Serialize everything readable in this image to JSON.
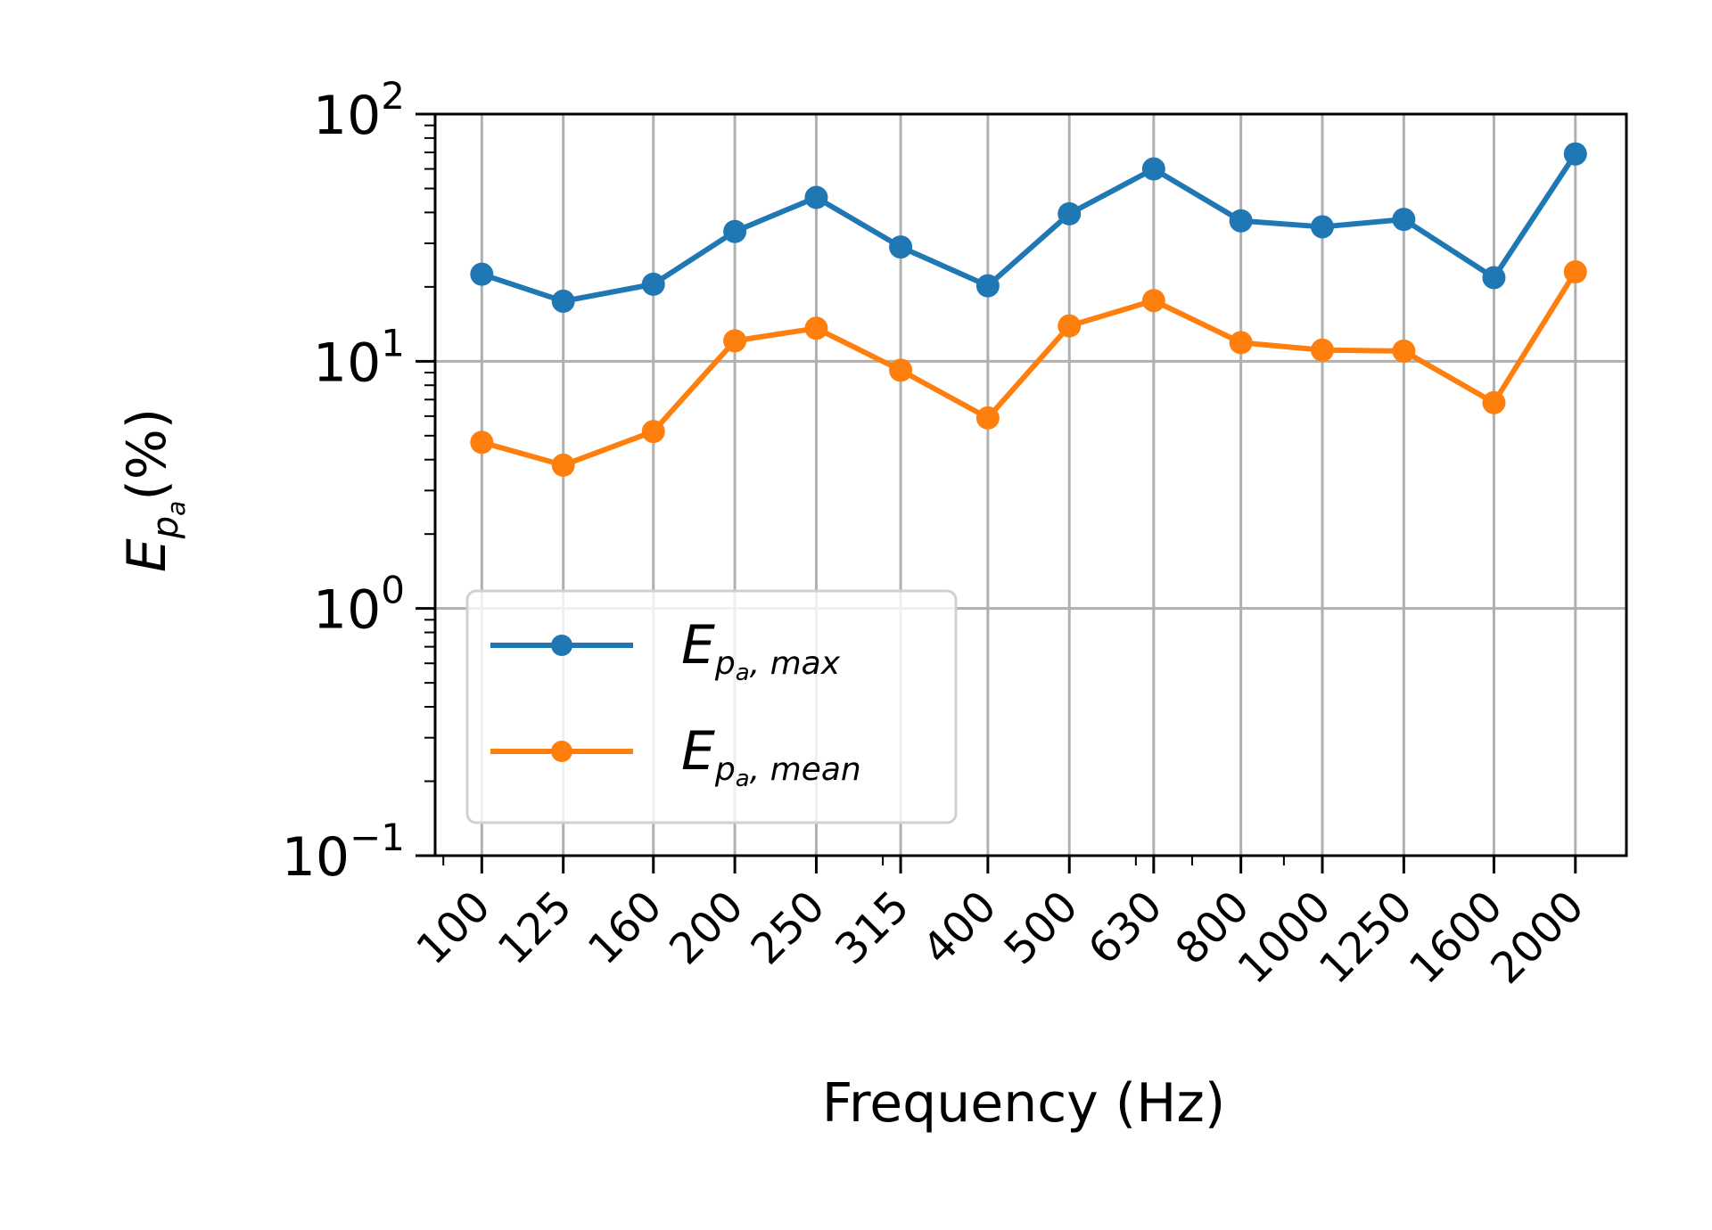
{
  "chart_data": {
    "type": "line",
    "title": "",
    "xlabel": "Frequency (Hz)",
    "ylabel": {
      "main": "E",
      "sub": "p",
      "subsub": "a",
      "unit": "(%)"
    },
    "yscale": "log",
    "ylim": [
      0.1,
      100
    ],
    "y_ticks": [
      {
        "base": "10",
        "exp": "−1"
      },
      {
        "base": "10",
        "exp": "0"
      },
      {
        "base": "10",
        "exp": "1"
      },
      {
        "base": "10",
        "exp": "2"
      }
    ],
    "xscale": "log",
    "x": [
      100,
      125,
      160,
      200,
      250,
      315,
      400,
      500,
      630,
      800,
      1000,
      1250,
      1600,
      2000
    ],
    "x_ticklabels": [
      "100",
      "125",
      "160",
      "200",
      "250",
      "315",
      "400",
      "500",
      "630",
      "800",
      "1000",
      "1250",
      "1600",
      "2000"
    ],
    "grid": true,
    "legend_position": "lower-left",
    "series": [
      {
        "name": "E_{p_a, max}",
        "label": {
          "main": "E",
          "sub": "p",
          "subsub": "a",
          "rest": ", max"
        },
        "color": "#1f77b4",
        "values": [
          22.5,
          17.5,
          20.5,
          33.5,
          46,
          29,
          20.2,
          39.5,
          60,
          37,
          35,
          37.5,
          21.8,
          69
        ]
      },
      {
        "name": "E_{p_a, mean}",
        "label": {
          "main": "E",
          "sub": "p",
          "subsub": "a",
          "rest": ", mean"
        },
        "color": "#ff7f0e",
        "values": [
          4.7,
          3.8,
          5.2,
          12.1,
          13.6,
          9.2,
          5.9,
          13.9,
          17.6,
          11.9,
          11.1,
          11,
          6.8,
          23
        ]
      }
    ]
  }
}
